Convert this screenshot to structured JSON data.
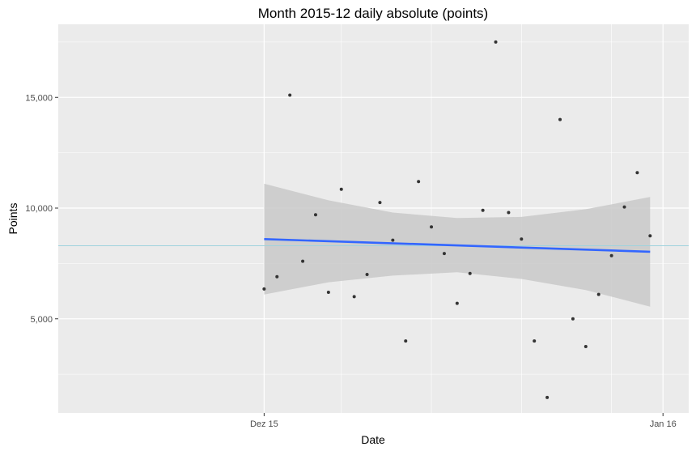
{
  "chart_data": {
    "type": "scatter",
    "title": "Month 2015-12 daily absolute (points)",
    "xlabel": "Date",
    "ylabel": "Points",
    "x_ticks": [
      "Dez 15",
      "Jan 16"
    ],
    "y_ticks": [
      {
        "value": 5000,
        "label": "5,000"
      },
      {
        "value": 10000,
        "label": "10,000"
      },
      {
        "value": 15000,
        "label": "15,000"
      }
    ],
    "grid": true,
    "xlim": [
      "2015-11-29",
      "2016-01-17"
    ],
    "ylim": [
      750,
      18300
    ],
    "points": [
      {
        "x": "2015-12-15",
        "y": 6350
      },
      {
        "x": "2015-12-16",
        "y": 6900
      },
      {
        "x": "2015-12-17",
        "y": 15100
      },
      {
        "x": "2015-12-18",
        "y": 7600
      },
      {
        "x": "2015-12-19",
        "y": 9700
      },
      {
        "x": "2015-12-20",
        "y": 6200
      },
      {
        "x": "2015-12-21",
        "y": 10850
      },
      {
        "x": "2015-12-22",
        "y": 6000
      },
      {
        "x": "2015-12-23",
        "y": 7000
      },
      {
        "x": "2015-12-24",
        "y": 10250
      },
      {
        "x": "2015-12-25",
        "y": 8550
      },
      {
        "x": "2015-12-26",
        "y": 4000
      },
      {
        "x": "2015-12-27",
        "y": 11200
      },
      {
        "x": "2015-12-28",
        "y": 9150
      },
      {
        "x": "2015-12-29",
        "y": 7950
      },
      {
        "x": "2015-12-30",
        "y": 5700
      },
      {
        "x": "2015-12-31",
        "y": 7050
      },
      {
        "x": "2016-01-01",
        "y": 9900
      },
      {
        "x": "2016-01-02",
        "y": 17500
      },
      {
        "x": "2016-01-03",
        "y": 9800
      },
      {
        "x": "2016-01-04",
        "y": 8600
      },
      {
        "x": "2016-01-05",
        "y": 4000
      },
      {
        "x": "2016-01-06",
        "y": 1450
      },
      {
        "x": "2016-01-07",
        "y": 14000
      },
      {
        "x": "2016-01-08",
        "y": 5000
      },
      {
        "x": "2016-01-09",
        "y": 3750
      },
      {
        "x": "2016-01-10",
        "y": 6100
      },
      {
        "x": "2016-01-11",
        "y": 7850
      },
      {
        "x": "2016-01-12",
        "y": 10050
      },
      {
        "x": "2016-01-13",
        "y": 11600
      },
      {
        "x": "2016-01-14",
        "y": 8750
      }
    ],
    "trend": {
      "start": {
        "x": "2015-12-15",
        "y": 8600
      },
      "end": {
        "x": "2016-01-14",
        "y": 8030
      },
      "color": "#3366ff"
    },
    "confidence_band": [
      {
        "x": "2015-12-15",
        "lower": 6100,
        "upper": 11100
      },
      {
        "x": "2015-12-20",
        "lower": 6650,
        "upper": 10350
      },
      {
        "x": "2015-12-25",
        "lower": 6950,
        "upper": 9800
      },
      {
        "x": "2015-12-30",
        "lower": 7100,
        "upper": 9550
      },
      {
        "x": "2016-01-04",
        "lower": 6800,
        "upper": 9600
      },
      {
        "x": "2016-01-09",
        "lower": 6300,
        "upper": 9950
      },
      {
        "x": "2016-01-14",
        "lower": 5550,
        "upper": 10500
      }
    ],
    "reference_line": {
      "y": 8300,
      "color": "#9fd3dd"
    },
    "colors": {
      "panel": "#ebebeb",
      "grid": "#ffffff",
      "point": "#333333",
      "band": "#c9c9c9"
    }
  }
}
